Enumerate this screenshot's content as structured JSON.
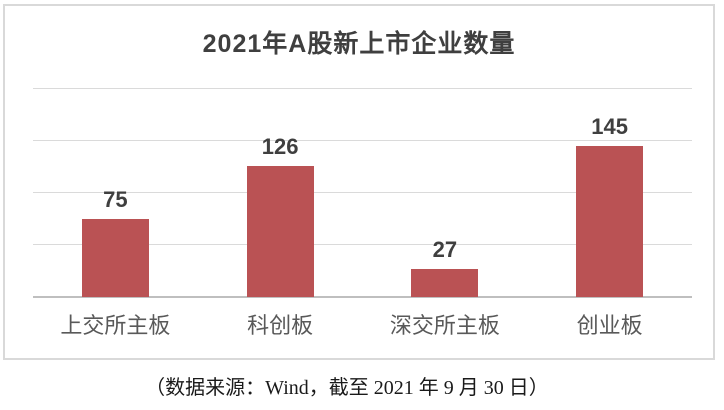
{
  "chart": {
    "colors": {
      "bar": "#BA5254",
      "gridline": "#DADADA",
      "baseline": "#BFBFBF",
      "frame_border": "#D9D9D9",
      "title_text": "#3F3F3F",
      "value_label_text": "#3F3F3F",
      "category_label_text": "#595959",
      "source_text": "#1A1A1A"
    }
  },
  "chart_data": {
    "type": "bar",
    "title": "2021年A股新上市企业数量",
    "categories": [
      "上交所主板",
      "科创板",
      "深交所主板",
      "创业板"
    ],
    "values": [
      75,
      126,
      27,
      145
    ],
    "xlabel": "",
    "ylabel": "",
    "ylim": [
      0,
      200
    ],
    "gridline_values": [
      50,
      100,
      150,
      200
    ],
    "grid": "horizontal",
    "legend_position": "none",
    "data_labels": "outside-end",
    "bar_color_hex": "#BA5254",
    "source_note": "（数据来源：Wind，截至 2021 年 9 月 30 日）"
  }
}
